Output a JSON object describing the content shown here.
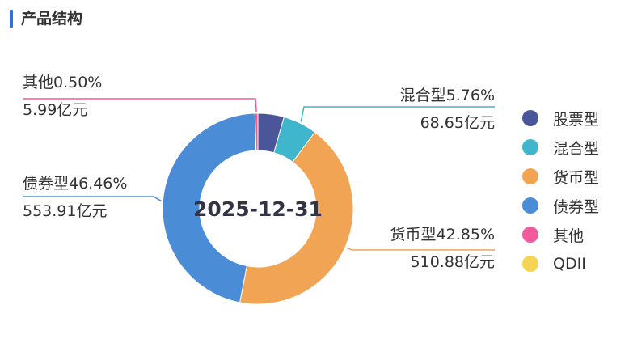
{
  "header": {
    "title": "产品结构"
  },
  "chart_data": {
    "type": "pie",
    "center_label": "2025-12-31",
    "slices": [
      {
        "name": "股票型",
        "percent": 4.43,
        "color": "#4a5699"
      },
      {
        "name": "混合型",
        "percent": 5.76,
        "color": "#3fb6cc",
        "label_pct": "混合型5.76%",
        "label_amt": "68.65亿元"
      },
      {
        "name": "货币型",
        "percent": 42.85,
        "color": "#f2a455",
        "label_pct": "货币型42.85%",
        "label_amt": "510.88亿元"
      },
      {
        "name": "债券型",
        "percent": 46.46,
        "color": "#4a8cd6",
        "label_pct": "债券型46.46%",
        "label_amt": "553.91亿元"
      },
      {
        "name": "其他",
        "percent": 0.5,
        "color": "#ef5b9c",
        "label_pct": "其他0.50%",
        "label_amt": "5.99亿元"
      },
      {
        "name": "QDII",
        "percent": 0,
        "color": "#f5d44f"
      }
    ],
    "legend_position": "right"
  }
}
